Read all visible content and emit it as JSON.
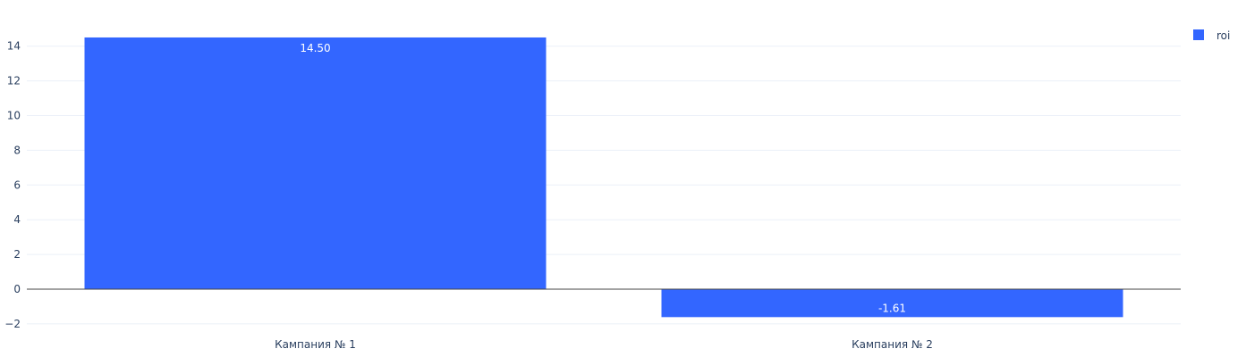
{
  "chart_data": {
    "type": "bar",
    "categories": [
      "Кампания № 1",
      "Кампания № 2"
    ],
    "series": [
      {
        "name": "roi",
        "values": [
          14.5,
          -1.61
        ],
        "labels": [
          "14.50",
          "-1.61"
        ],
        "color": "#3366ff"
      }
    ],
    "title": "",
    "xlabel": "",
    "ylabel": "",
    "ylim": [
      -2.5,
      15.5
    ],
    "yticks": [
      -2,
      0,
      2,
      4,
      6,
      8,
      10,
      12,
      14
    ],
    "ytick_labels": [
      "−2",
      "0",
      "2",
      "4",
      "6",
      "8",
      "10",
      "12",
      "14"
    ],
    "grid": true,
    "legend_position": "top-right"
  }
}
